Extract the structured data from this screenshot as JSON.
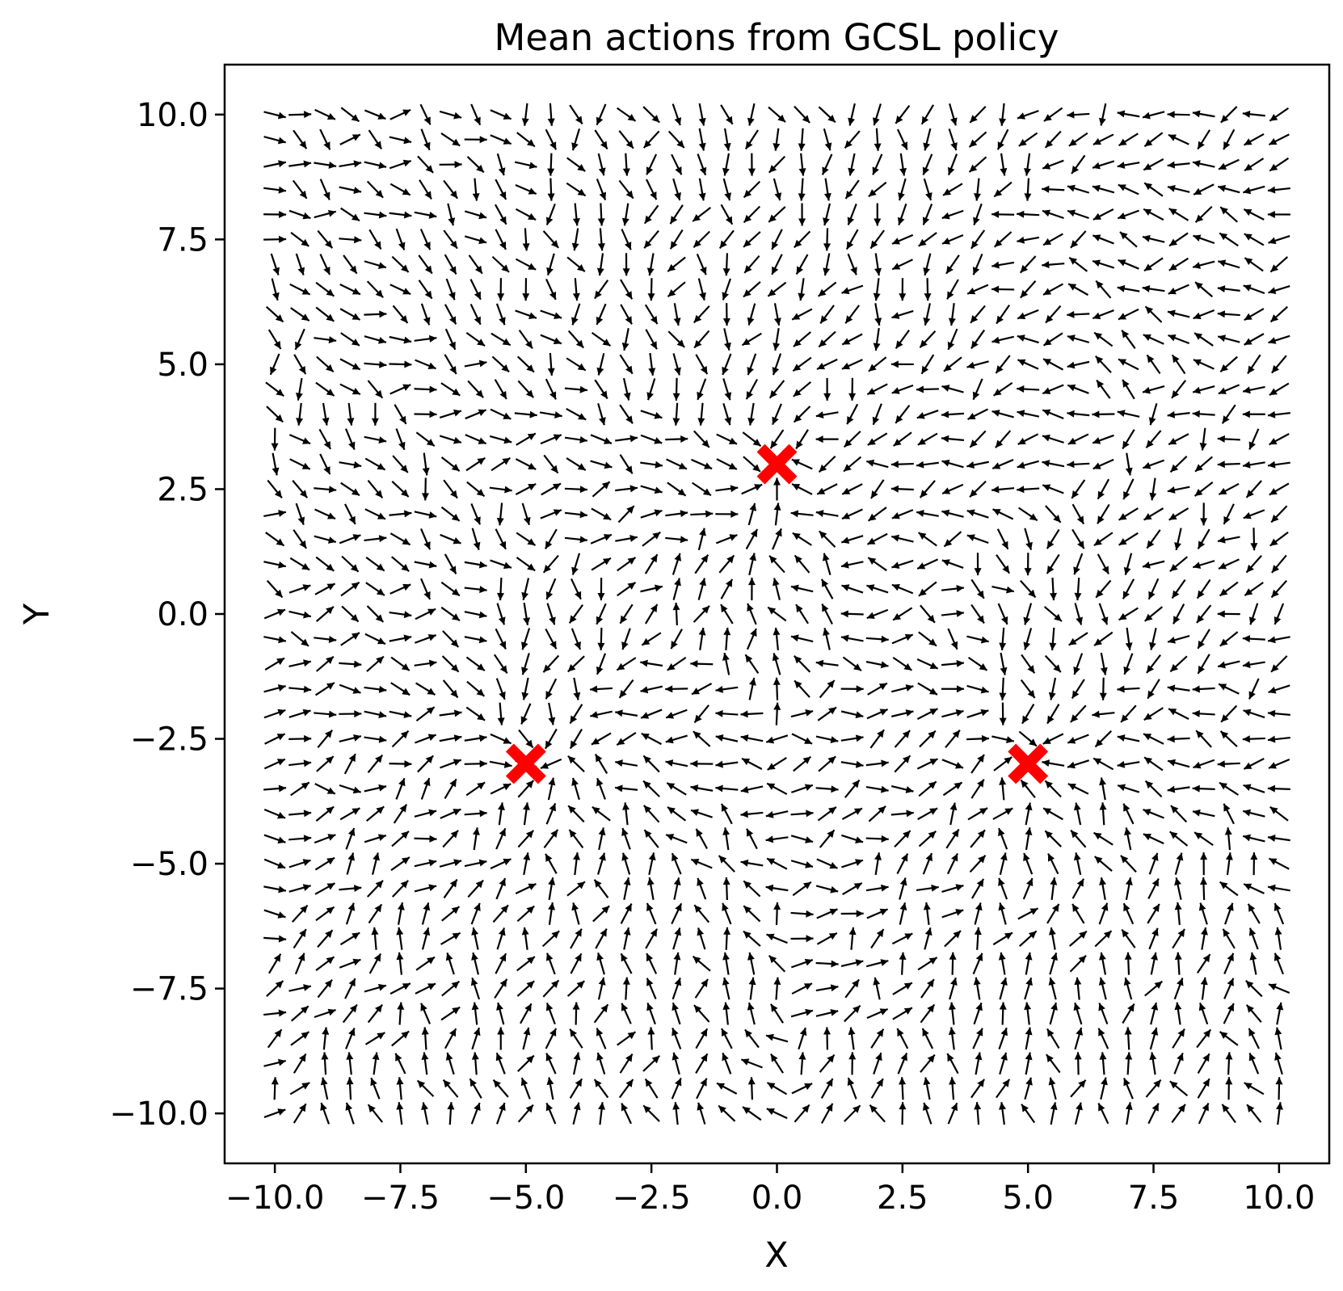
{
  "chart_data": {
    "type": "quiver",
    "title": "Mean actions from GCSL policy",
    "xlabel": "X",
    "ylabel": "Y",
    "xlim": [
      -11,
      11
    ],
    "ylim": [
      -11,
      11
    ],
    "xticks": [
      -10.0,
      -7.5,
      -5.0,
      -2.5,
      0.0,
      2.5,
      5.0,
      7.5,
      10.0
    ],
    "yticks": [
      -10.0,
      -7.5,
      -5.0,
      -2.5,
      0.0,
      2.5,
      5.0,
      7.5,
      10.0
    ],
    "xtick_labels": [
      "−10.0",
      "−7.5",
      "−5.0",
      "−2.5",
      "0.0",
      "2.5",
      "5.0",
      "7.5",
      "10.0"
    ],
    "ytick_labels": [
      "−10.0",
      "−7.5",
      "−5.0",
      "−2.5",
      "0.0",
      "2.5",
      "5.0",
      "7.5",
      "10.0"
    ],
    "grid": false,
    "vector_grid": {
      "x_range": [
        -10,
        10
      ],
      "y_range": [
        -10,
        10
      ],
      "count_per_axis": 41,
      "color": "#000000"
    },
    "goals": {
      "marker": "x",
      "color": "#ff0000",
      "points": [
        {
          "x": 0.0,
          "y": 3.0
        },
        {
          "x": -5.0,
          "y": -3.0
        },
        {
          "x": 5.0,
          "y": -3.0
        }
      ]
    }
  }
}
